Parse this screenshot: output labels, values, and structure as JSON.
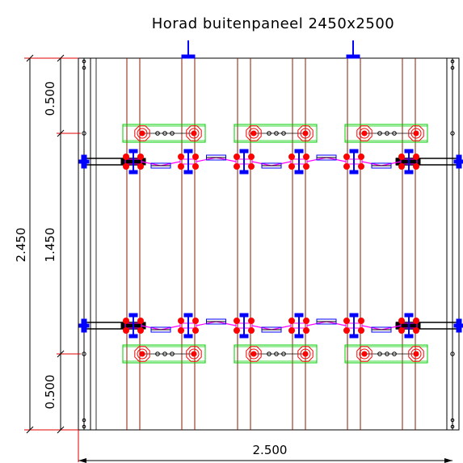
{
  "title": "Horad buitenpaneel 2450x2500",
  "dimensions": {
    "total_height": "2.450",
    "top_segment": "0.500",
    "middle_segment": "1.450",
    "bottom_segment": "0.500",
    "total_width": "2.500"
  },
  "colors": {
    "outline": "#000000",
    "rails": "#8b1a00",
    "dimension_red": "#e00000",
    "bracket_green": "#00cc00",
    "hardware_blue": "#0000ff",
    "hardware_red": "#ff0000",
    "link_magenta": "#ff00ff"
  }
}
